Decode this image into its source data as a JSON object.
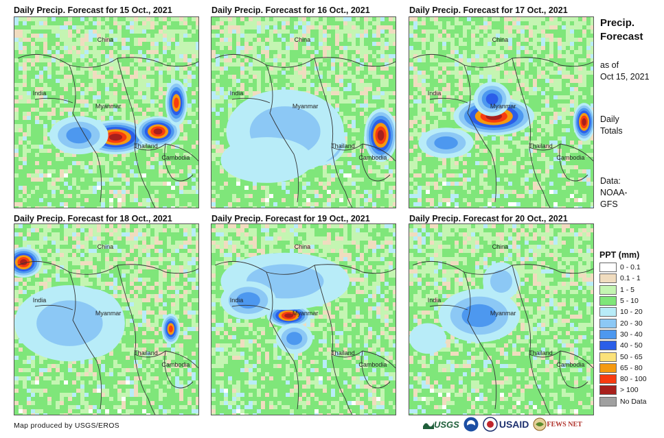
{
  "panels": [
    {
      "title": "Daily Precip. Forecast for 15 Oct., 2021",
      "variant": 1
    },
    {
      "title": "Daily Precip. Forecast for 16 Oct., 2021",
      "variant": 2
    },
    {
      "title": "Daily Precip. Forecast for 17 Oct., 2021",
      "variant": 3
    },
    {
      "title": "Daily Precip. Forecast for 18 Oct., 2021",
      "variant": 4
    },
    {
      "title": "Daily Precip. Forecast for 19 Oct., 2021",
      "variant": 5
    },
    {
      "title": "Daily Precip. Forecast for 20 Oct., 2021",
      "variant": 6
    }
  ],
  "places": {
    "china": "China",
    "india": "India",
    "myanmar": "Myanmar",
    "thailand": "Thailand",
    "cambodia": "Cambodia"
  },
  "sidebar": {
    "title_line1": "Precip.",
    "title_line2": "Forecast",
    "asof_line1": "as of",
    "asof_line2": "Oct 15, 2021",
    "daily_line1": "Daily",
    "daily_line2": "Totals",
    "source_line1": "Data:",
    "source_line2": "NOAA-",
    "source_line3": "GFS"
  },
  "legend": {
    "title": "PPT (mm)",
    "items": [
      {
        "label": "0 - 0.1",
        "color": "#ffffff"
      },
      {
        "label": "0.1 - 1",
        "color": "#f0dcbf"
      },
      {
        "label": "1 - 5",
        "color": "#c4f5b2"
      },
      {
        "label": "5 - 10",
        "color": "#7fe67a"
      },
      {
        "label": "10 - 20",
        "color": "#b8ecf8"
      },
      {
        "label": "20 - 30",
        "color": "#8cc8f5"
      },
      {
        "label": "30 - 40",
        "color": "#4d98ef"
      },
      {
        "label": "40 - 50",
        "color": "#2b5ee8"
      },
      {
        "label": "50 - 65",
        "color": "#fbe27a"
      },
      {
        "label": "65 - 80",
        "color": "#f59a10"
      },
      {
        "label": "80 - 100",
        "color": "#f83c10"
      },
      {
        "label": "> 100",
        "color": "#a8201c"
      },
      {
        "label": "No Data",
        "color": "#a0a0a0"
      }
    ]
  },
  "footer": {
    "credit": "Map produced by USGS/EROS"
  },
  "logos": {
    "usgs": "USGS",
    "usaid": "USAID",
    "fewsnet": "FEWS NET"
  }
}
